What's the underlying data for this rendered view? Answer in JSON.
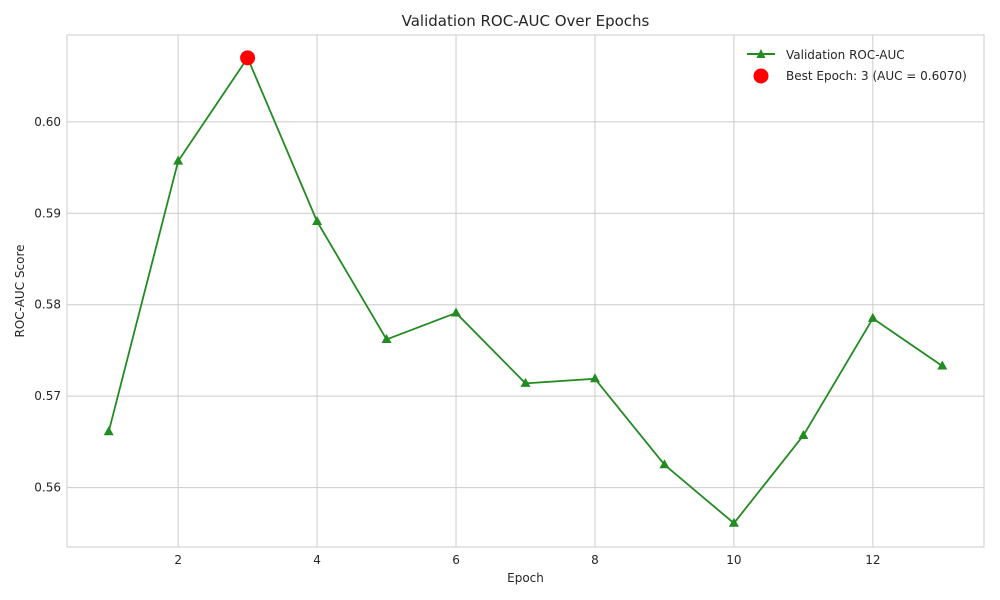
{
  "chart_data": {
    "type": "line",
    "title": "Validation ROC-AUC Over Epochs",
    "xlabel": "Epoch",
    "ylabel": "ROC-AUC Score",
    "xlim": [
      0.4,
      13.6
    ],
    "ylim": [
      0.5535,
      0.6095
    ],
    "x_ticks": [
      2,
      4,
      6,
      8,
      10,
      12
    ],
    "y_ticks": [
      0.56,
      0.57,
      0.58,
      0.59,
      0.6
    ],
    "grid": true,
    "legend_position": "top-right",
    "series": [
      {
        "name": "Validation ROC-AUC",
        "color": "#228b22",
        "marker": "triangle",
        "x": [
          1,
          2,
          3,
          4,
          5,
          6,
          7,
          8,
          9,
          10,
          11,
          12,
          13
        ],
        "y": [
          0.5661,
          0.5957,
          0.607,
          0.5891,
          0.5762,
          0.5791,
          0.5714,
          0.5719,
          0.5625,
          0.5561,
          0.5657,
          0.5785,
          0.5733
        ]
      }
    ],
    "best_point": {
      "label": "Best Epoch: 3 (AUC = 0.6070)",
      "x": 3,
      "y": 0.607,
      "color": "#ff0000"
    }
  }
}
